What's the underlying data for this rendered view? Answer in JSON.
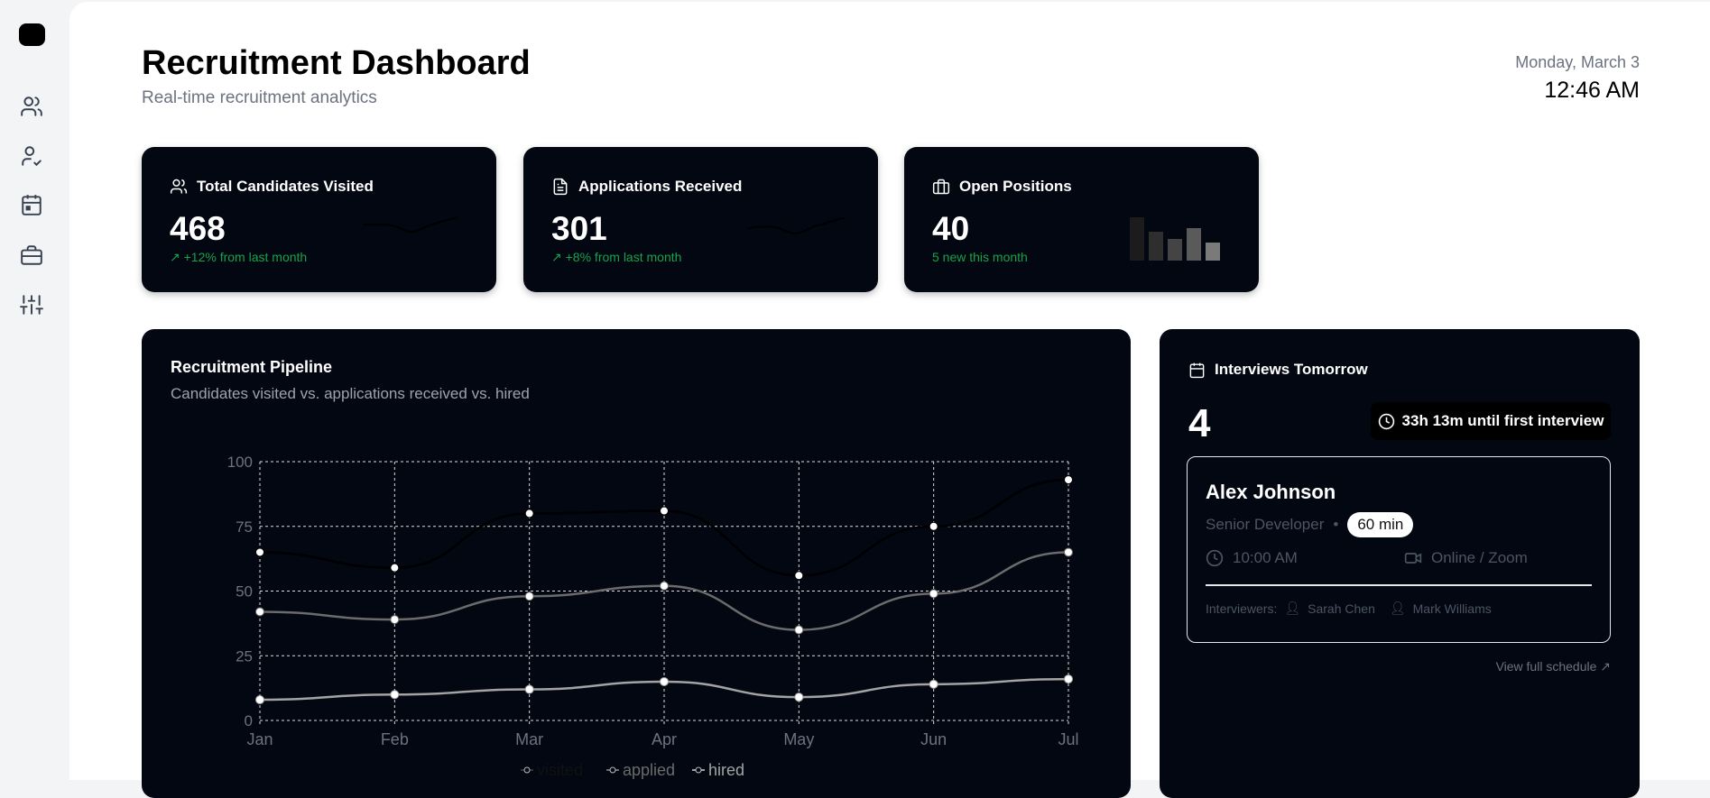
{
  "sidebar": {
    "items": [
      {
        "icon": "users-icon"
      },
      {
        "icon": "user-check-icon"
      },
      {
        "icon": "calendar-icon"
      },
      {
        "icon": "briefcase-icon"
      },
      {
        "icon": "sliders-icon"
      }
    ]
  },
  "header": {
    "title": "Recruitment Dashboard",
    "subtitle": "Real-time recruitment analytics",
    "date": "Monday, March 3",
    "time": "12:46 AM"
  },
  "stats": [
    {
      "label": "Total Candidates Visited",
      "value": "468",
      "change": "+12% from last month",
      "icon": "users-icon"
    },
    {
      "label": "Applications Received",
      "value": "301",
      "change": "+8% from last month",
      "icon": "file-text-icon"
    },
    {
      "label": "Open Positions",
      "value": "40",
      "change": "5 new this month",
      "icon": "briefcase-icon"
    }
  ],
  "colors": {
    "card_bg": "#030712",
    "positive": "#16a34a",
    "muted": "#6b7280"
  },
  "pipeline": {
    "title": "Recruitment Pipeline",
    "subtitle": "Candidates visited vs. applications received vs. hired"
  },
  "chart_data": {
    "type": "line",
    "categories": [
      "Jan",
      "Feb",
      "Mar",
      "Apr",
      "May",
      "Jun",
      "Jul"
    ],
    "ylim": [
      0,
      100
    ],
    "yticks": [
      0,
      25,
      50,
      75,
      100
    ],
    "grid": true,
    "legend": "bottom",
    "series": [
      {
        "name": "visited",
        "values": [
          65,
          59,
          80,
          81,
          56,
          75,
          93
        ],
        "color": "#000000"
      },
      {
        "name": "applied",
        "values": [
          42,
          39,
          48,
          52,
          35,
          49,
          65
        ],
        "color": "#6b6b6b"
      },
      {
        "name": "hired",
        "values": [
          8,
          10,
          12,
          15,
          9,
          14,
          16
        ],
        "color": "#a3a3a3"
      }
    ]
  },
  "interviews": {
    "title": "Interviews Tomorrow",
    "count": "4",
    "countdown": "33h 13m until first interview",
    "next": {
      "name": "Alex Johnson",
      "role": "Senior Developer",
      "duration": "60 min",
      "time": "10:00 AM",
      "location": "Online / Zoom",
      "interviewers_label": "Interviewers:",
      "interviewers": [
        "Sarah Chen",
        "Mark Williams"
      ]
    },
    "view_link": "View full schedule ↗"
  }
}
